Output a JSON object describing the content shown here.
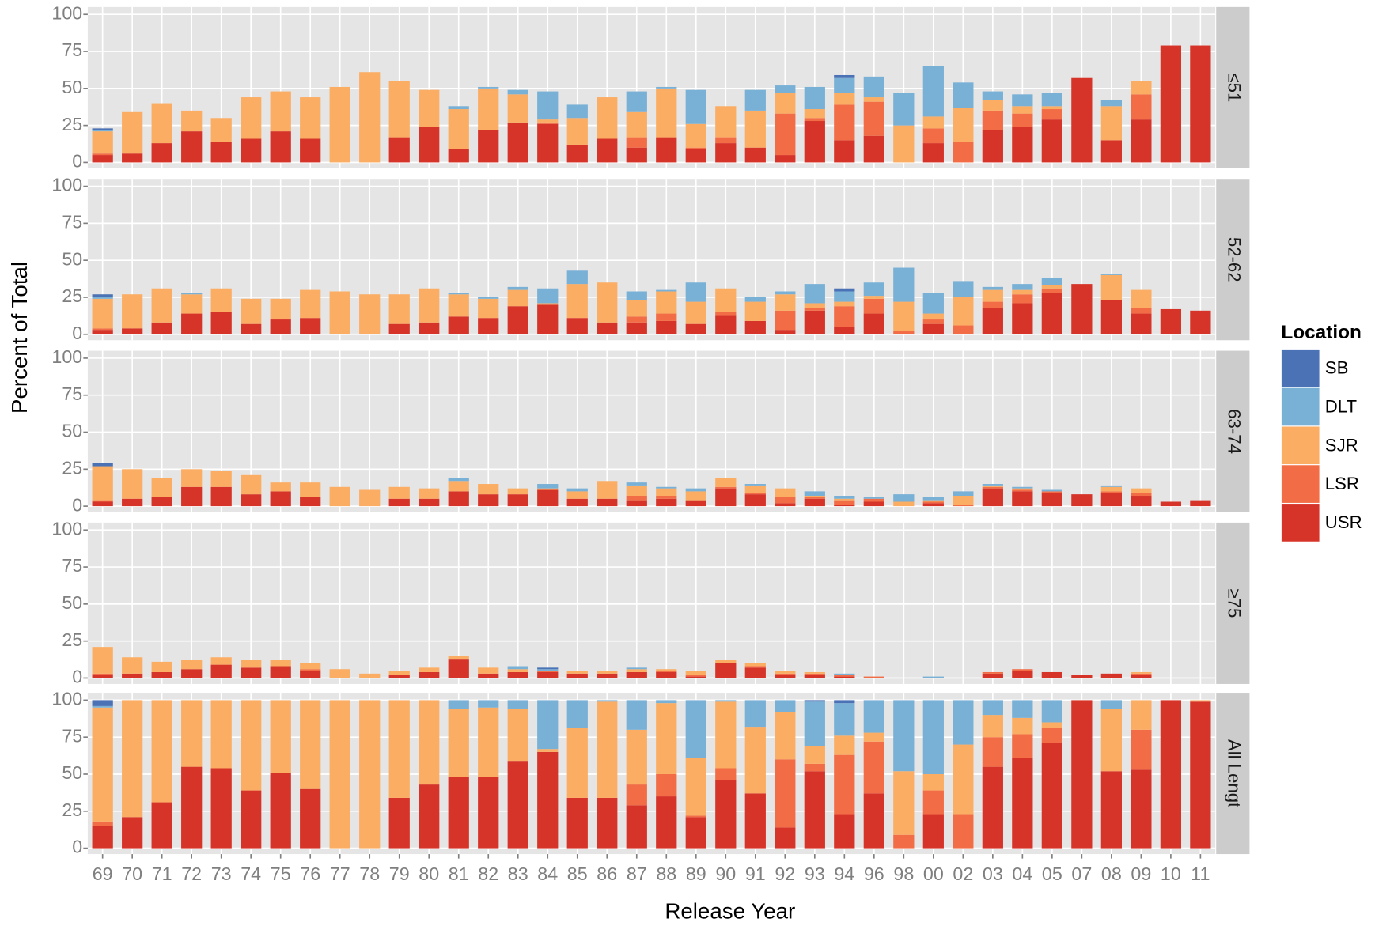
{
  "chart_data": {
    "type": "bar",
    "stacked": true,
    "x_label": "Release Year",
    "y_label": "Percent of Total",
    "legend_title": "Location",
    "categories": [
      "69",
      "70",
      "71",
      "72",
      "73",
      "74",
      "75",
      "76",
      "77",
      "78",
      "79",
      "80",
      "81",
      "82",
      "83",
      "84",
      "85",
      "86",
      "87",
      "88",
      "89",
      "90",
      "91",
      "92",
      "93",
      "94",
      "96",
      "98",
      "00",
      "02",
      "03",
      "04",
      "05",
      "07",
      "08",
      "09",
      "10",
      "11"
    ],
    "ylim": [
      -4,
      105
    ],
    "yticks": [
      0,
      25,
      50,
      75,
      100
    ],
    "grid": true,
    "series": [
      {
        "name": "SB",
        "color": "#4a72b4"
      },
      {
        "name": "DLT",
        "color": "#79b0d6"
      },
      {
        "name": "SJR",
        "color": "#fbad63"
      },
      {
        "name": "LSR",
        "color": "#f26c45"
      },
      {
        "name": "USR",
        "color": "#d73429"
      }
    ],
    "facets": [
      {
        "label": "≤51",
        "values": [
          [
            1,
            0,
            0,
            0,
            0,
            0,
            0,
            0,
            0,
            0,
            0,
            0,
            0,
            0,
            0,
            0,
            0,
            0,
            0,
            0,
            0,
            0,
            0,
            0,
            0,
            2,
            0,
            0,
            0,
            0,
            0,
            0,
            0,
            0,
            0,
            0,
            0,
            0
          ],
          [
            1,
            0,
            0,
            0,
            0,
            0,
            0,
            0,
            0,
            0,
            0,
            0,
            2,
            1,
            3,
            19,
            9,
            0,
            14,
            1,
            23,
            0,
            14,
            5,
            15,
            10,
            14,
            22,
            34,
            17,
            6,
            8,
            9,
            0,
            4,
            0,
            0,
            0
          ],
          [
            15,
            28,
            27,
            14,
            16,
            28,
            27,
            28,
            51,
            61,
            38,
            25,
            27,
            28,
            19,
            2,
            18,
            28,
            17,
            33,
            16,
            21,
            25,
            14,
            6,
            8,
            3,
            25,
            8,
            23,
            7,
            5,
            2,
            0,
            23,
            9,
            0,
            0
          ],
          [
            1,
            0,
            0,
            0,
            0,
            0,
            0,
            0,
            0,
            0,
            0,
            0,
            0,
            0,
            0,
            1,
            0,
            0,
            7,
            0,
            1,
            4,
            0,
            28,
            2,
            24,
            23,
            0,
            10,
            14,
            13,
            9,
            7,
            0,
            0,
            17,
            0,
            0
          ],
          [
            5,
            6,
            13,
            21,
            14,
            16,
            21,
            16,
            0,
            0,
            17,
            24,
            9,
            22,
            27,
            26,
            12,
            16,
            10,
            17,
            9,
            13,
            10,
            5,
            28,
            15,
            18,
            0,
            13,
            0,
            22,
            24,
            29,
            57,
            15,
            29,
            79,
            79
          ]
        ]
      },
      {
        "label": "52-62",
        "values": [
          [
            2,
            0,
            0,
            0,
            0,
            0,
            0,
            0,
            0,
            0,
            0,
            0,
            0,
            0,
            0,
            0,
            0,
            0,
            0,
            0,
            0,
            0,
            0,
            0,
            0,
            2,
            0,
            0,
            0,
            0,
            0,
            0,
            0,
            0,
            0,
            0,
            0,
            0
          ],
          [
            1,
            0,
            0,
            1,
            0,
            0,
            0,
            0,
            0,
            0,
            0,
            0,
            1,
            1,
            2,
            10,
            9,
            0,
            6,
            1,
            13,
            0,
            3,
            2,
            13,
            7,
            9,
            23,
            14,
            11,
            2,
            4,
            5,
            0,
            1,
            0,
            0,
            0
          ],
          [
            20,
            23,
            23,
            13,
            16,
            17,
            14,
            19,
            29,
            27,
            20,
            23,
            15,
            13,
            11,
            1,
            23,
            27,
            11,
            15,
            15,
            16,
            13,
            11,
            3,
            3,
            2,
            20,
            4,
            19,
            8,
            3,
            2,
            0,
            17,
            12,
            0,
            0
          ],
          [
            1,
            0,
            0,
            0,
            0,
            0,
            0,
            0,
            0,
            0,
            0,
            0,
            0,
            0,
            0,
            0,
            0,
            0,
            4,
            5,
            0,
            2,
            0,
            13,
            2,
            14,
            10,
            2,
            3,
            6,
            4,
            6,
            3,
            0,
            0,
            4,
            0,
            0
          ],
          [
            3,
            4,
            8,
            14,
            15,
            7,
            10,
            11,
            0,
            0,
            7,
            8,
            12,
            11,
            19,
            20,
            11,
            8,
            8,
            9,
            7,
            13,
            9,
            3,
            16,
            5,
            14,
            0,
            7,
            0,
            18,
            21,
            28,
            34,
            23,
            14,
            17,
            16
          ]
        ]
      },
      {
        "label": "63-74",
        "values": [
          [
            2,
            0,
            0,
            0,
            0,
            0,
            0,
            0,
            0,
            0,
            0,
            0,
            0,
            0,
            0,
            0,
            0,
            0,
            0,
            0,
            0,
            0,
            0,
            0,
            0,
            0,
            0,
            0,
            0,
            0,
            0,
            0,
            0,
            0,
            0,
            0,
            0,
            0
          ],
          [
            0,
            0,
            0,
            0,
            0,
            0,
            0,
            0,
            0,
            0,
            0,
            0,
            2,
            0,
            0,
            3,
            2,
            0,
            2,
            1,
            2,
            0,
            1,
            0,
            3,
            2,
            1,
            5,
            2,
            3,
            1,
            1,
            1,
            0,
            1,
            0,
            0,
            0
          ],
          [
            23,
            20,
            13,
            12,
            11,
            13,
            6,
            10,
            13,
            11,
            8,
            7,
            7,
            7,
            4,
            1,
            5,
            12,
            7,
            5,
            6,
            6,
            5,
            6,
            1,
            1,
            0,
            3,
            1,
            6,
            1,
            1,
            0,
            0,
            3,
            3,
            0,
            0
          ],
          [
            1,
            0,
            0,
            0,
            0,
            0,
            0,
            0,
            0,
            0,
            0,
            0,
            0,
            0,
            0,
            0,
            0,
            0,
            3,
            2,
            0,
            1,
            1,
            4,
            1,
            3,
            2,
            0,
            1,
            1,
            1,
            1,
            1,
            0,
            1,
            2,
            0,
            0
          ],
          [
            3,
            5,
            6,
            13,
            13,
            8,
            10,
            6,
            0,
            0,
            5,
            5,
            10,
            8,
            8,
            11,
            5,
            5,
            4,
            5,
            4,
            12,
            8,
            2,
            5,
            1,
            3,
            0,
            2,
            0,
            12,
            10,
            9,
            8,
            9,
            7,
            3,
            4
          ]
        ]
      },
      {
        "label": "≥75",
        "values": [
          [
            0,
            0,
            0,
            0,
            0,
            0,
            0,
            0,
            0,
            0,
            0,
            0,
            0,
            0,
            0,
            1,
            0,
            0,
            0,
            0,
            0,
            0,
            0,
            0,
            0,
            0,
            0,
            0,
            0,
            0,
            0,
            0,
            0,
            0,
            0,
            0,
            0,
            0
          ],
          [
            0,
            0,
            0,
            0,
            0,
            0,
            0,
            0,
            0,
            0,
            0,
            0,
            0,
            0,
            2,
            1,
            0,
            0,
            1,
            0,
            0,
            0,
            0,
            0,
            0,
            1,
            0,
            0,
            1,
            0,
            0,
            0,
            0,
            0,
            0,
            0,
            0,
            0
          ],
          [
            18,
            11,
            7,
            6,
            5,
            5,
            4,
            4,
            6,
            3,
            3,
            3,
            2,
            4,
            2,
            0,
            2,
            2,
            2,
            1,
            3,
            2,
            2,
            2,
            1,
            0,
            0,
            0,
            0,
            0,
            0,
            0,
            0,
            0,
            0,
            1,
            0,
            0
          ],
          [
            1,
            0,
            0,
            0,
            0,
            0,
            0,
            1,
            0,
            0,
            0,
            0,
            0,
            0,
            0,
            1,
            0,
            0,
            0,
            1,
            1,
            0,
            1,
            1,
            1,
            1,
            1,
            0,
            0,
            0,
            1,
            1,
            0,
            0,
            0,
            1,
            0,
            0
          ],
          [
            2,
            3,
            4,
            6,
            9,
            7,
            8,
            5,
            0,
            0,
            2,
            4,
            13,
            3,
            4,
            4,
            3,
            3,
            4,
            4,
            1,
            10,
            7,
            2,
            2,
            1,
            0,
            0,
            0,
            0,
            3,
            5,
            4,
            2,
            3,
            2,
            0,
            0
          ]
        ]
      },
      {
        "label": "All Lengt",
        "values": [
          [
            4,
            0,
            0,
            0,
            0,
            0,
            0,
            0,
            0,
            0,
            0,
            0,
            0,
            0,
            0,
            0,
            0,
            0,
            0,
            0,
            0,
            0,
            0,
            0,
            1,
            2,
            0,
            0,
            0,
            0,
            0,
            0,
            0,
            0,
            0,
            0,
            0,
            0
          ],
          [
            1,
            0,
            0,
            0,
            0,
            0,
            0,
            0,
            0,
            0,
            0,
            0,
            6,
            5,
            6,
            33,
            19,
            1,
            20,
            2,
            39,
            1,
            18,
            8,
            30,
            22,
            22,
            48,
            50,
            30,
            10,
            12,
            15,
            0,
            6,
            0,
            0,
            0
          ],
          [
            77,
            79,
            69,
            45,
            46,
            61,
            49,
            60,
            100,
            100,
            66,
            57,
            46,
            47,
            35,
            2,
            47,
            65,
            37,
            48,
            39,
            45,
            45,
            32,
            12,
            13,
            6,
            43,
            11,
            47,
            15,
            11,
            4,
            0,
            42,
            20,
            0,
            1
          ],
          [
            3,
            0,
            0,
            0,
            0,
            0,
            0,
            0,
            0,
            0,
            0,
            0,
            0,
            0,
            0,
            0,
            0,
            0,
            14,
            15,
            1,
            8,
            0,
            46,
            5,
            40,
            35,
            9,
            16,
            23,
            20,
            16,
            10,
            0,
            0,
            27,
            0,
            0
          ],
          [
            15,
            21,
            31,
            55,
            54,
            39,
            51,
            40,
            0,
            0,
            34,
            43,
            48,
            48,
            59,
            65,
            34,
            34,
            29,
            35,
            21,
            46,
            37,
            14,
            52,
            23,
            37,
            0,
            23,
            0,
            55,
            61,
            71,
            100,
            52,
            53,
            100,
            99
          ]
        ]
      }
    ]
  }
}
